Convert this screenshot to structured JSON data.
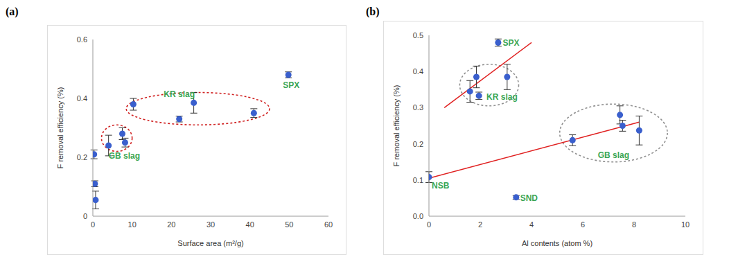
{
  "chart_data": [
    {
      "type": "scatter",
      "title": "(a)",
      "x_label": "Surface area (m²/g)",
      "y_label": "F removal efficiency (%)",
      "x": [
        0.3,
        0.5,
        0.7,
        4,
        7.5,
        8.2,
        10.3,
        22,
        25.7,
        41,
        49.8
      ],
      "values": [
        0.21,
        0.11,
        0.055,
        0.24,
        0.28,
        0.25,
        0.38,
        0.33,
        0.385,
        0.35,
        0.48
      ],
      "error": [
        0.015,
        0.01,
        0.03,
        0.035,
        0.02,
        0.015,
        0.02,
        0.01,
        0.035,
        0.015,
        0.01
      ],
      "color": "#3a5fcd",
      "grid": false,
      "xlim": [
        0,
        60
      ],
      "xticks": [
        0,
        10,
        20,
        30,
        40,
        50,
        60
      ],
      "ylim": [
        0,
        0.6
      ],
      "yticks": [
        0,
        0.2,
        0.4,
        0.6
      ],
      "annotations": [
        {
          "text": "KR slag",
          "x": 22,
          "y": 0.415,
          "color": "#3aa655"
        },
        {
          "text": "GB slag",
          "x": 8,
          "y": 0.205,
          "color": "#3aa655"
        },
        {
          "text": "SPX",
          "x": 50.5,
          "y": 0.445,
          "color": "#3aa655"
        }
      ],
      "ellipses": [
        {
          "x": [
            2.2,
            10
          ],
          "y": [
            0.22,
            0.31
          ],
          "color": "#d02020",
          "line_style": "dotted"
        },
        {
          "x": [
            8.5,
            45
          ],
          "y": [
            0.31,
            0.42
          ],
          "color": "#d02020",
          "line_style": "dotted"
        }
      ]
    },
    {
      "type": "scatter",
      "title": "(b)",
      "x_label": "Al contents (atom %)",
      "y_label": "F removal efficiency (%)",
      "x": [
        2.7,
        1.6,
        1.85,
        1.95,
        3.05,
        0,
        3.4,
        5.6,
        7.45,
        7.55,
        8.2
      ],
      "values": [
        0.48,
        0.345,
        0.385,
        0.333,
        0.385,
        0.108,
        0.052,
        0.21,
        0.28,
        0.25,
        0.237
      ],
      "error": [
        0.01,
        0.03,
        0.03,
        0.01,
        0.035,
        0.015,
        0.005,
        0.015,
        0.025,
        0.015,
        0.04
      ],
      "color": "#3a5fcd",
      "grid": false,
      "xlim": [
        0,
        10
      ],
      "xticks": [
        0,
        2,
        4,
        6,
        8,
        10
      ],
      "ylim": [
        0,
        0.5
      ],
      "yticks": [
        {
          "value": 0,
          "label": "0.0"
        },
        0.1,
        0.2,
        0.3,
        0.4,
        0.5
      ],
      "trend_lines": [
        {
          "x": [
            0.6,
            4
          ],
          "y": [
            0.3,
            0.48
          ],
          "color": "#e02020"
        },
        {
          "x": [
            0,
            8.2
          ],
          "y": [
            0.105,
            0.26
          ],
          "color": "#e02020"
        }
      ],
      "annotations": [
        {
          "text": "SPX",
          "x": 3.2,
          "y": 0.48,
          "color": "#3aa655"
        },
        {
          "text": "KR slag",
          "x": 2.85,
          "y": 0.33,
          "color": "#3aa655"
        },
        {
          "text": "NSB",
          "x": 0.45,
          "y": 0.085,
          "color": "#3aa655"
        },
        {
          "text": "SND",
          "x": 3.9,
          "y": 0.05,
          "color": "#3aa655"
        },
        {
          "text": "GB slag",
          "x": 7.2,
          "y": 0.17,
          "color": "#3aa655"
        }
      ],
      "ellipses": [
        {
          "x": [
            1.2,
            3.5
          ],
          "y": [
            0.305,
            0.42
          ],
          "color": "#909090",
          "line_style": "dotted"
        },
        {
          "x": [
            5.1,
            9.3
          ],
          "y": [
            0.15,
            0.31
          ],
          "color": "#909090",
          "line_style": "dotted"
        }
      ]
    }
  ]
}
